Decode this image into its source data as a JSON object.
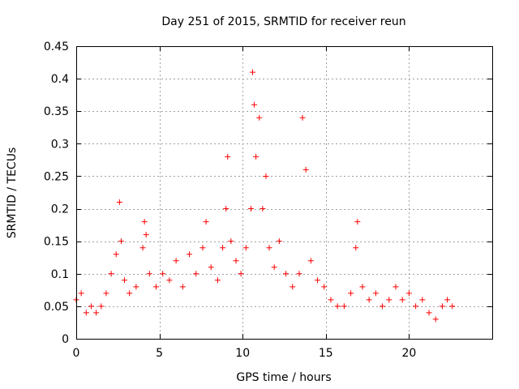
{
  "chart_data": {
    "type": "scatter",
    "title": "Day 251 of 2015, SRMTID for receiver reun",
    "xlabel": "GPS time / hours",
    "ylabel": "SRMTID / TECUs",
    "xlim": [
      0,
      25
    ],
    "ylim": [
      0,
      0.45
    ],
    "x_ticks": [
      0,
      5,
      10,
      15,
      20
    ],
    "x_tick_labels": [
      "0",
      "5",
      "10",
      "15",
      "20"
    ],
    "y_ticks": [
      0,
      0.05,
      0.1,
      0.15,
      0.2,
      0.25,
      0.3,
      0.35,
      0.4,
      0.45
    ],
    "y_tick_labels": [
      "0",
      "0.05",
      "0.1",
      "0.15",
      "0.2",
      "0.25",
      "0.3",
      "0.35",
      "0.4",
      "0.45"
    ],
    "grid": true,
    "marker": "+",
    "series_color": "#ff0000",
    "series": [
      {
        "name": "SRMTID",
        "x": [
          0.0,
          0.3,
          0.6,
          0.9,
          1.2,
          1.5,
          1.8,
          2.1,
          2.4,
          2.6,
          2.7,
          2.9,
          3.2,
          3.6,
          4.0,
          4.1,
          4.2,
          4.4,
          4.8,
          5.2,
          5.6,
          6.0,
          6.4,
          6.8,
          7.2,
          7.6,
          7.8,
          8.1,
          8.5,
          8.8,
          9.0,
          9.1,
          9.3,
          9.6,
          9.9,
          10.2,
          10.5,
          10.6,
          10.7,
          10.8,
          11.0,
          11.2,
          11.4,
          11.6,
          11.9,
          12.2,
          12.6,
          13.0,
          13.4,
          13.6,
          13.8,
          14.1,
          14.5,
          14.9,
          15.3,
          15.7,
          16.1,
          16.5,
          16.8,
          16.9,
          17.2,
          17.6,
          18.0,
          18.4,
          18.8,
          19.2,
          19.6,
          20.0,
          20.4,
          20.8,
          21.2,
          21.6,
          22.0,
          22.3,
          22.6
        ],
        "y": [
          0.06,
          0.07,
          0.04,
          0.05,
          0.04,
          0.05,
          0.07,
          0.1,
          0.13,
          0.21,
          0.15,
          0.09,
          0.07,
          0.08,
          0.14,
          0.18,
          0.16,
          0.1,
          0.08,
          0.1,
          0.09,
          0.12,
          0.08,
          0.13,
          0.1,
          0.14,
          0.18,
          0.11,
          0.09,
          0.14,
          0.2,
          0.28,
          0.15,
          0.12,
          0.1,
          0.14,
          0.2,
          0.41,
          0.36,
          0.28,
          0.34,
          0.2,
          0.25,
          0.14,
          0.11,
          0.15,
          0.1,
          0.08,
          0.1,
          0.34,
          0.26,
          0.12,
          0.09,
          0.08,
          0.06,
          0.05,
          0.05,
          0.07,
          0.14,
          0.18,
          0.08,
          0.06,
          0.07,
          0.05,
          0.06,
          0.08,
          0.06,
          0.07,
          0.05,
          0.06,
          0.04,
          0.03,
          0.05,
          0.06,
          0.05
        ]
      }
    ]
  }
}
